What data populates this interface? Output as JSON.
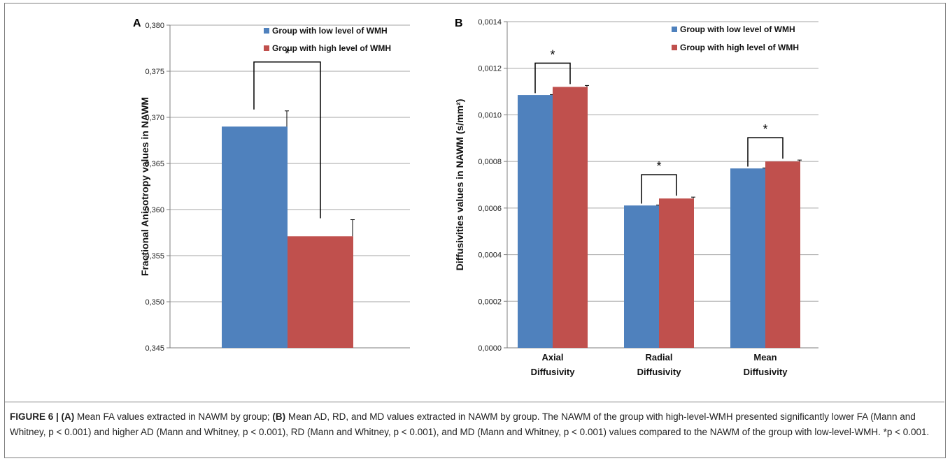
{
  "chart_data": [
    {
      "panel": "A",
      "type": "bar",
      "categories": [
        ""
      ],
      "series": [
        {
          "name": "Group with low level of WMH",
          "values": [
            0.369
          ],
          "error": [
            0.0017
          ],
          "color": "#4f81bd"
        },
        {
          "name": "Group with high level of WMH",
          "values": [
            0.3571
          ],
          "error": [
            0.0018
          ],
          "color": "#c0504d"
        }
      ],
      "ylabel": "Fractional Anisotropy values in NAWM",
      "ylim": [
        0.345,
        0.38
      ],
      "yticks": [
        "0,345",
        "0,350",
        "0,355",
        "0,360",
        "0,365",
        "0,370",
        "0,375",
        "0,380"
      ],
      "grid": true,
      "legend": "top-right",
      "annotations": [
        "*"
      ]
    },
    {
      "panel": "B",
      "type": "bar",
      "categories": [
        [
          "Axial",
          "Diffusivity"
        ],
        [
          "Radial",
          "Diffusivity"
        ],
        [
          "Mean",
          "Diffusivity"
        ]
      ],
      "series": [
        {
          "name": "Group with low level of WMH",
          "values": [
            0.001085,
            0.000611,
            0.00077
          ],
          "error": [
            2e-06,
            2e-06,
            2e-06
          ],
          "color": "#4f81bd"
        },
        {
          "name": "Group with high level of WMH",
          "values": [
            0.00112,
            0.000641,
            0.0008
          ],
          "error": [
            6e-06,
            6e-06,
            6e-06
          ],
          "color": "#c0504d"
        }
      ],
      "ylabel": "Diffusivities values in NAWM (s/mm²)",
      "ylim": [
        0,
        0.0014
      ],
      "yticks": [
        "0,0000",
        "0,0002",
        "0,0004",
        "0,0006",
        "0,0008",
        "0,0010",
        "0,0012",
        "0,0014"
      ],
      "grid": true,
      "legend": "top-right",
      "annotations": [
        "*",
        "*",
        "*"
      ]
    }
  ],
  "caption": {
    "lead": "FIGURE 6 | (A)",
    "part1": " Mean FA values extracted in NAWM by group; ",
    "lead_b": "(B)",
    "part2": " Mean AD, RD, and MD values extracted in NAWM by group. The NAWM of the group with high-level-WMH presented significantly lower FA (Mann and Whitney, p < 0.001) and higher AD (Mann and Whitney, p < 0.001), RD (Mann and Whitney, p < 0.001), and MD (Mann and Whitney, p < 0.001) values compared to the NAWM of the group with low-level-WMH. *p < 0.001."
  }
}
